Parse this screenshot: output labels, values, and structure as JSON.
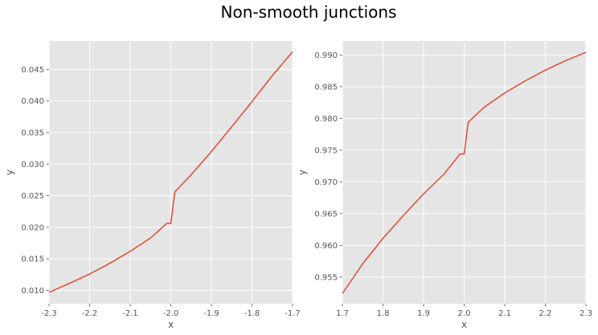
{
  "title": "Non-smooth junctions",
  "chart_data": [
    {
      "type": "line",
      "xlabel": "x",
      "ylabel": "y",
      "xlim": [
        -2.3,
        -1.7
      ],
      "ylim": [
        0.0079,
        0.0495
      ],
      "xticks": [
        "-2.3",
        "-2.2",
        "-2.1",
        "-2.0",
        "-1.9",
        "-1.8",
        "-1.7"
      ],
      "yticks": [
        "0.010",
        "0.015",
        "0.020",
        "0.025",
        "0.030",
        "0.035",
        "0.040",
        "0.045"
      ],
      "grid": true,
      "color": "#E24A33",
      "series": [
        {
          "x": [
            -2.3,
            -2.25,
            -2.2,
            -2.15,
            -2.1,
            -2.05,
            -2.01,
            -2.0,
            -1.99,
            -1.95,
            -1.9,
            -1.85,
            -1.8,
            -1.75,
            -1.7
          ],
          "y": [
            0.0097,
            0.0111,
            0.0126,
            0.0143,
            0.0162,
            0.0183,
            0.0206,
            0.0206,
            0.0256,
            0.0283,
            0.032,
            0.0359,
            0.0399,
            0.044,
            0.0478
          ]
        }
      ]
    },
    {
      "type": "line",
      "xlabel": "x",
      "ylabel": "y",
      "xlim": [
        1.7,
        2.3
      ],
      "ylim": [
        0.9508,
        0.9922
      ],
      "xticks": [
        "1.7",
        "1.8",
        "1.9",
        "2.0",
        "2.1",
        "2.2",
        "2.3"
      ],
      "yticks": [
        "0.955",
        "0.960",
        "0.965",
        "0.970",
        "0.975",
        "0.980",
        "0.985",
        "0.990"
      ],
      "grid": true,
      "color": "#E24A33",
      "series": [
        {
          "x": [
            1.7,
            1.75,
            1.8,
            1.85,
            1.9,
            1.95,
            1.99,
            2.0,
            2.01,
            2.05,
            2.1,
            2.15,
            2.2,
            2.25,
            2.3
          ],
          "y": [
            0.9524,
            0.9571,
            0.9611,
            0.9647,
            0.9681,
            0.9712,
            0.9744,
            0.9744,
            0.9794,
            0.9818,
            0.984,
            0.9859,
            0.9876,
            0.9891,
            0.9904
          ]
        }
      ]
    }
  ]
}
